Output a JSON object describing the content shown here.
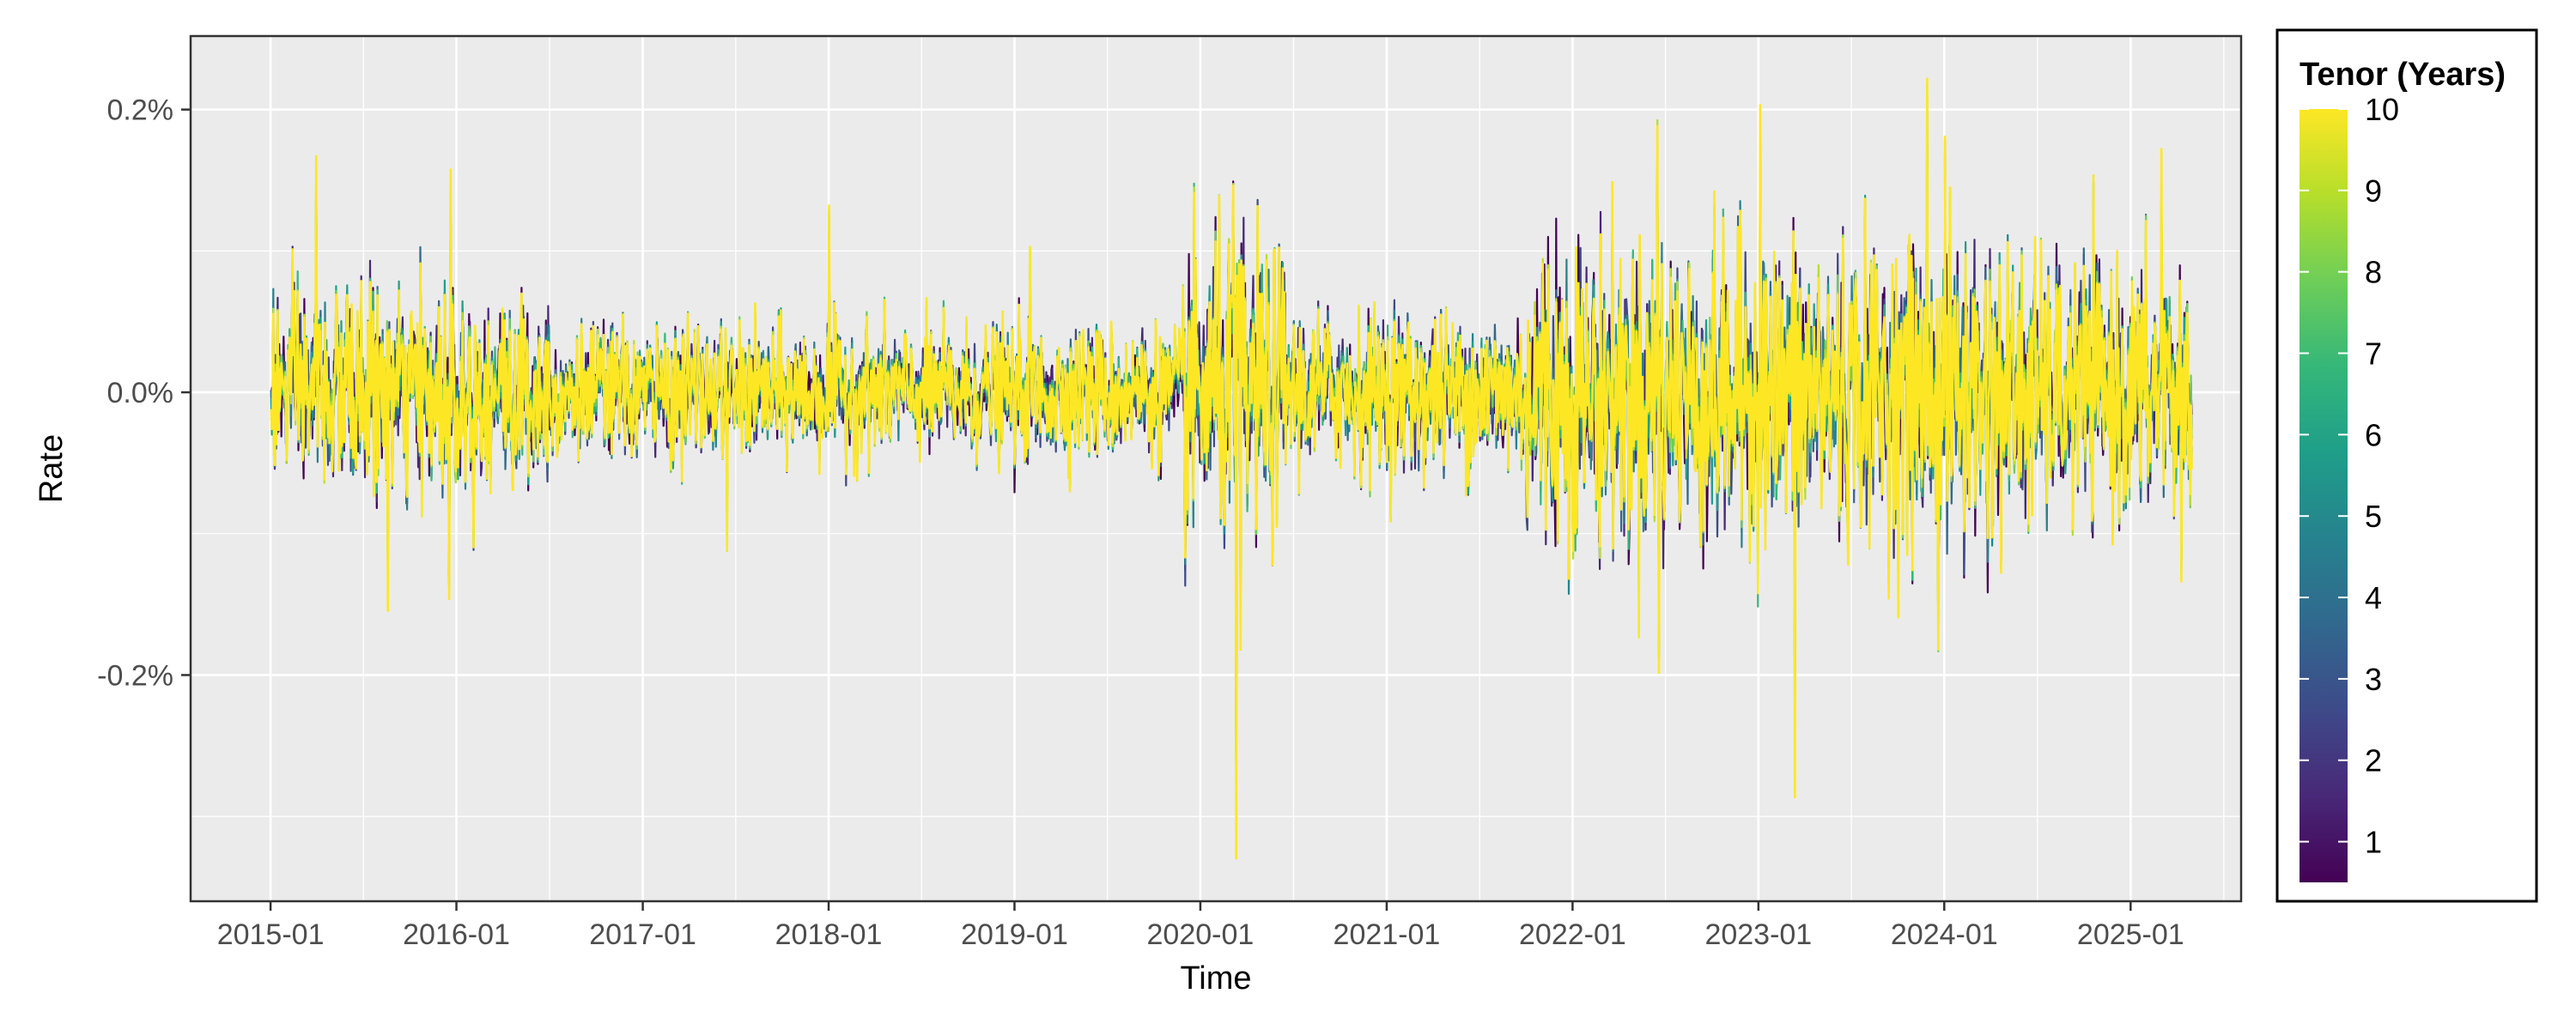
{
  "chart_data": {
    "type": "line",
    "xlabel": "Time",
    "ylabel": "Rate",
    "x_ticks": [
      "2015-01",
      "2016-01",
      "2017-01",
      "2018-01",
      "2019-01",
      "2020-01",
      "2021-01",
      "2022-01",
      "2023-01",
      "2024-01",
      "2025-01"
    ],
    "x_range": [
      "2014-07-28",
      "2025-08-06"
    ],
    "y_ticks": [
      {
        "value": 0.2,
        "label": "0.2%"
      },
      {
        "value": 0.0,
        "label": "0.0%"
      },
      {
        "value": -0.2,
        "label": "-0.2%"
      }
    ],
    "ylim": [
      -0.36,
      0.252
    ],
    "y_unit": "%",
    "grid": true,
    "background": "#ebebeb",
    "legend": {
      "title": "Tenor (Years)",
      "position": "right",
      "labels": [
        "10",
        "9",
        "8",
        "7",
        "6",
        "5",
        "4",
        "3",
        "2",
        "1"
      ],
      "range": [
        0.5,
        10
      ],
      "palette": "viridis",
      "colors": [
        "#440154",
        "#482878",
        "#3e4a89",
        "#31688e",
        "#26828e",
        "#1f9e89",
        "#35b779",
        "#6ece58",
        "#b5de2b",
        "#fde725"
      ]
    },
    "series_tenors": [
      1,
      2,
      3,
      4,
      5,
      6,
      7,
      8,
      9,
      10
    ],
    "data_start": "2015-01-02",
    "data_end": "2025-05-01",
    "approx_points_per_series": 2600,
    "key_points": [
      {
        "date": "2015-04-01",
        "value": 0.165
      },
      {
        "date": "2015-08-20",
        "value": -0.155
      },
      {
        "date": "2015-12-20",
        "value": 0.155
      },
      {
        "date": "2015-12-18",
        "value": -0.147
      },
      {
        "date": "2017-06-15",
        "value": -0.112
      },
      {
        "date": "2018-01-02",
        "value": 0.133
      },
      {
        "date": "2019-02-01",
        "value": 0.104
      },
      {
        "date": "2020-03-12",
        "value": -0.332
      },
      {
        "date": "2020-03-06",
        "value": 0.148
      },
      {
        "date": "2020-03-20",
        "value": -0.185
      },
      {
        "date": "2022-06-16",
        "value": 0.19
      },
      {
        "date": "2022-06-20",
        "value": -0.2
      },
      {
        "date": "2023-01-05",
        "value": 0.203
      },
      {
        "date": "2023-03-13",
        "value": -0.285
      },
      {
        "date": "2023-11-28",
        "value": 0.225
      },
      {
        "date": "2024-01-02",
        "value": 0.18
      },
      {
        "date": "2023-12-20",
        "value": -0.183
      },
      {
        "date": "2025-03-02",
        "value": 0.172
      },
      {
        "date": "2025-04-10",
        "value": -0.137
      }
    ]
  }
}
